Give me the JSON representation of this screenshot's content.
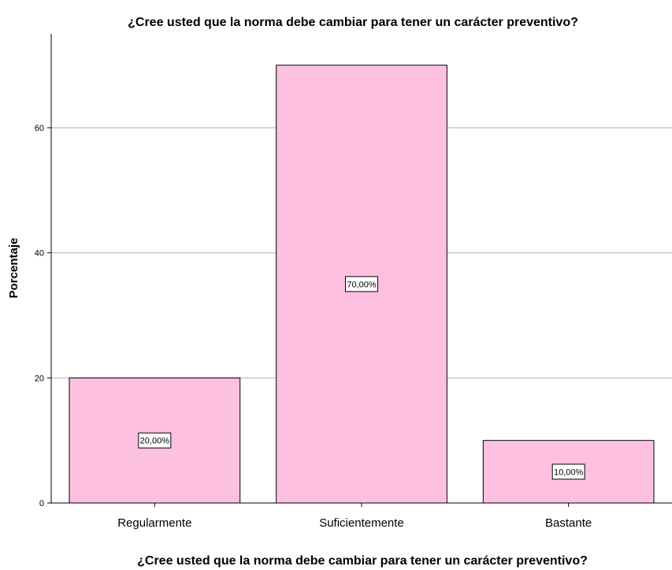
{
  "chart_data": {
    "type": "bar",
    "title": "¿Cree usted que la norma debe cambiar para tener un carácter preventivo?",
    "xlabel": "¿Cree usted que la norma debe cambiar para tener un carácter preventivo?",
    "ylabel": "Porcentaje",
    "categories": [
      "Regularmente",
      "Suficientemente",
      "Bastante"
    ],
    "values": [
      20,
      70,
      10
    ],
    "data_labels": [
      "20,00%",
      "70,00%",
      "10,00%"
    ],
    "ylim": [
      0,
      75
    ],
    "yticks": [
      0,
      20,
      40,
      60
    ],
    "grid": true,
    "bar_color": "#fdc0e0",
    "bar_edge_color": "#000000",
    "grid_color": "#c8c8c8"
  }
}
